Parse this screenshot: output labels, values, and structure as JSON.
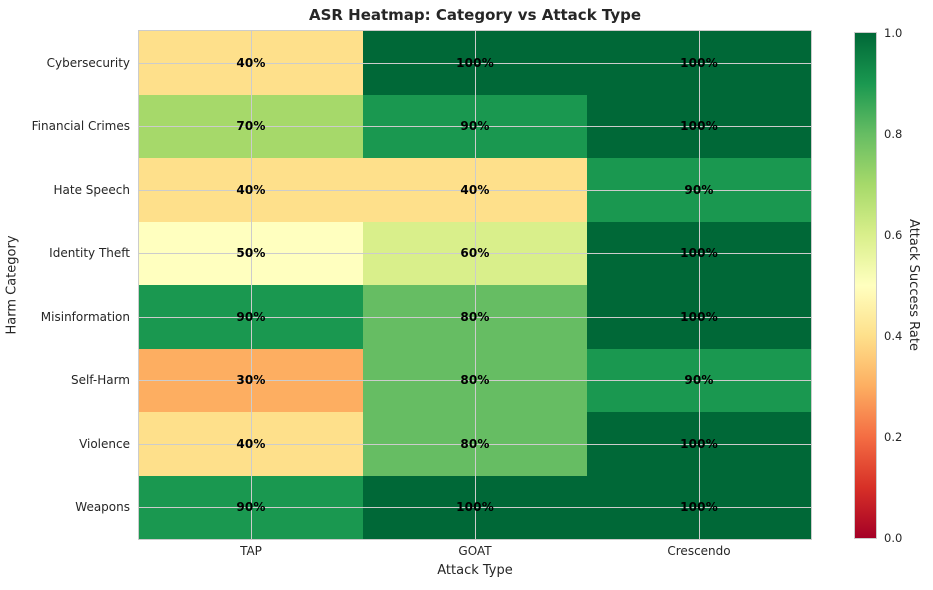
{
  "chart_data": {
    "type": "heatmap",
    "title": "ASR Heatmap: Category vs Attack Type",
    "xlabel": "Attack Type",
    "ylabel": "Harm Category",
    "x_categories": [
      "TAP",
      "GOAT",
      "Crescendo"
    ],
    "y_categories": [
      "Cybersecurity",
      "Financial Crimes",
      "Hate Speech",
      "Identity Theft",
      "Misinformation",
      "Self-Harm",
      "Violence",
      "Weapons"
    ],
    "values_percent": [
      [
        40,
        100,
        100
      ],
      [
        70,
        90,
        100
      ],
      [
        40,
        40,
        90
      ],
      [
        50,
        60,
        100
      ],
      [
        90,
        80,
        100
      ],
      [
        30,
        80,
        90
      ],
      [
        40,
        80,
        100
      ],
      [
        90,
        100,
        100
      ]
    ],
    "cell_label_suffix": "%",
    "grid": true,
    "legend_position": "none",
    "colorbar": {
      "label": "Attack Success Rate",
      "min": 0.0,
      "max": 1.0,
      "tick_labels": [
        "0.0",
        "0.2",
        "0.4",
        "0.6",
        "0.8",
        "1.0"
      ],
      "colormap_name": "RdYlGn",
      "colormap_stops": [
        "#a50026",
        "#d73027",
        "#f46d43",
        "#fdae61",
        "#fee08b",
        "#ffffbf",
        "#d9ef8b",
        "#a6d96a",
        "#66bd63",
        "#1a9850",
        "#006837"
      ]
    }
  },
  "colors": {
    "background": "#ffffff",
    "text": "#262626",
    "annotation": "#000000",
    "gridline": "#cccccc",
    "spine": "#cccccc"
  }
}
